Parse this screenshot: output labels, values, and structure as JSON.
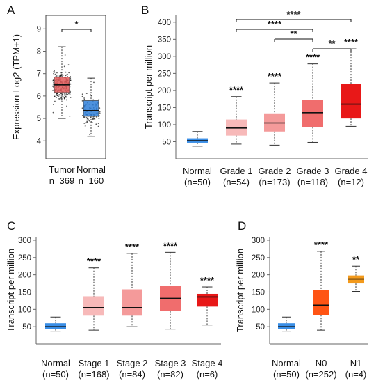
{
  "chart_data": [
    {
      "panel": "A",
      "type": "boxplot",
      "ylabel": "Expression-Log2 (TPM+1)",
      "yticks": [
        4,
        5,
        6,
        7,
        8,
        9
      ],
      "ylim": [
        3.2,
        9.6
      ],
      "groups": [
        {
          "label": "Tumor",
          "n": "n=369",
          "q1": 6.15,
          "median": 6.5,
          "q3": 6.85,
          "min": 5.0,
          "max": 8.2,
          "color": "#e35b5b"
        },
        {
          "label": "Normal",
          "n": "n=160",
          "q1": 5.1,
          "median": 5.35,
          "q3": 5.8,
          "min": 4.2,
          "max": 6.8,
          "color": "#2f7fd8"
        }
      ],
      "comparisons": [
        {
          "from": 0,
          "to": 1,
          "label": "*"
        }
      ]
    },
    {
      "panel": "B",
      "type": "boxplot",
      "ylabel": "Transcript per million",
      "yticks": [
        50,
        100,
        150,
        200,
        250,
        300,
        350,
        400
      ],
      "ylim": [
        0,
        420
      ],
      "groups": [
        {
          "label": "Normal",
          "n": "(n=50)",
          "q1": 47,
          "median": 53,
          "q3": 60,
          "min": 37,
          "max": 80,
          "color": "#3a8ee6",
          "sig": ""
        },
        {
          "label": "Grade 1",
          "n": "(n=54)",
          "q1": 68,
          "median": 90,
          "q3": 115,
          "min": 43,
          "max": 182,
          "color": "#f7b9b9",
          "sig": "****"
        },
        {
          "label": "Grade 2",
          "n": "(n=173)",
          "q1": 80,
          "median": 105,
          "q3": 133,
          "min": 40,
          "max": 222,
          "color": "#f49a9a",
          "sig": "****"
        },
        {
          "label": "Grade 3",
          "n": "(n=118)",
          "q1": 93,
          "median": 135,
          "q3": 172,
          "min": 48,
          "max": 278,
          "color": "#f06d6d",
          "sig": "****"
        },
        {
          "label": "Grade 4",
          "n": "(n=12)",
          "q1": 118,
          "median": 160,
          "q3": 220,
          "min": 95,
          "max": 322,
          "color": "#e81818",
          "sig": "****"
        }
      ],
      "comparisons": [
        {
          "from": 3,
          "to": 4,
          "label": "**"
        },
        {
          "from": 2,
          "to": 3,
          "label": "**"
        },
        {
          "from": 1,
          "to": 3,
          "label": "****"
        },
        {
          "from": 1,
          "to": 4,
          "label": "****"
        }
      ]
    },
    {
      "panel": "C",
      "type": "boxplot",
      "ylabel": "Transcript per million",
      "yticks": [
        50,
        100,
        150,
        200,
        250,
        300
      ],
      "ylim": [
        0,
        310
      ],
      "groups": [
        {
          "label": "Normal",
          "n": "(n=50)",
          "q1": 43,
          "median": 50,
          "q3": 60,
          "min": 37,
          "max": 78,
          "color": "#3a8ee6",
          "sig": ""
        },
        {
          "label": "Stage 1",
          "n": "(n=168)",
          "q1": 82,
          "median": 105,
          "q3": 138,
          "min": 40,
          "max": 220,
          "color": "#f7b9b9",
          "sig": "****"
        },
        {
          "label": "Stage 2",
          "n": "(n=84)",
          "q1": 82,
          "median": 105,
          "q3": 158,
          "min": 50,
          "max": 262,
          "color": "#f49a9a",
          "sig": "****"
        },
        {
          "label": "Stage 3",
          "n": "(n=82)",
          "q1": 95,
          "median": 132,
          "q3": 168,
          "min": 43,
          "max": 265,
          "color": "#f06d6d",
          "sig": "****"
        },
        {
          "label": "Stage 4",
          "n": "(n=6)",
          "q1": 108,
          "median": 136,
          "q3": 145,
          "min": 55,
          "max": 165,
          "color": "#e81818",
          "sig": "****"
        }
      ]
    },
    {
      "panel": "D",
      "type": "boxplot",
      "ylabel": "Transcript per million",
      "yticks": [
        50,
        100,
        150,
        200,
        250,
        300
      ],
      "ylim": [
        0,
        310
      ],
      "groups": [
        {
          "label": "Normal",
          "n": "(n=50)",
          "q1": 43,
          "median": 50,
          "q3": 60,
          "min": 37,
          "max": 78,
          "color": "#3a8ee6",
          "sig": ""
        },
        {
          "label": "N0",
          "n": "(n=252)",
          "q1": 84,
          "median": 112,
          "q3": 157,
          "min": 40,
          "max": 268,
          "color": "#ff5414",
          "sig": "****"
        },
        {
          "label": "N1",
          "n": "(n=4)",
          "q1": 175,
          "median": 188,
          "q3": 198,
          "min": 152,
          "max": 225,
          "color": "#f39a1c",
          "sig": "**"
        }
      ]
    }
  ]
}
